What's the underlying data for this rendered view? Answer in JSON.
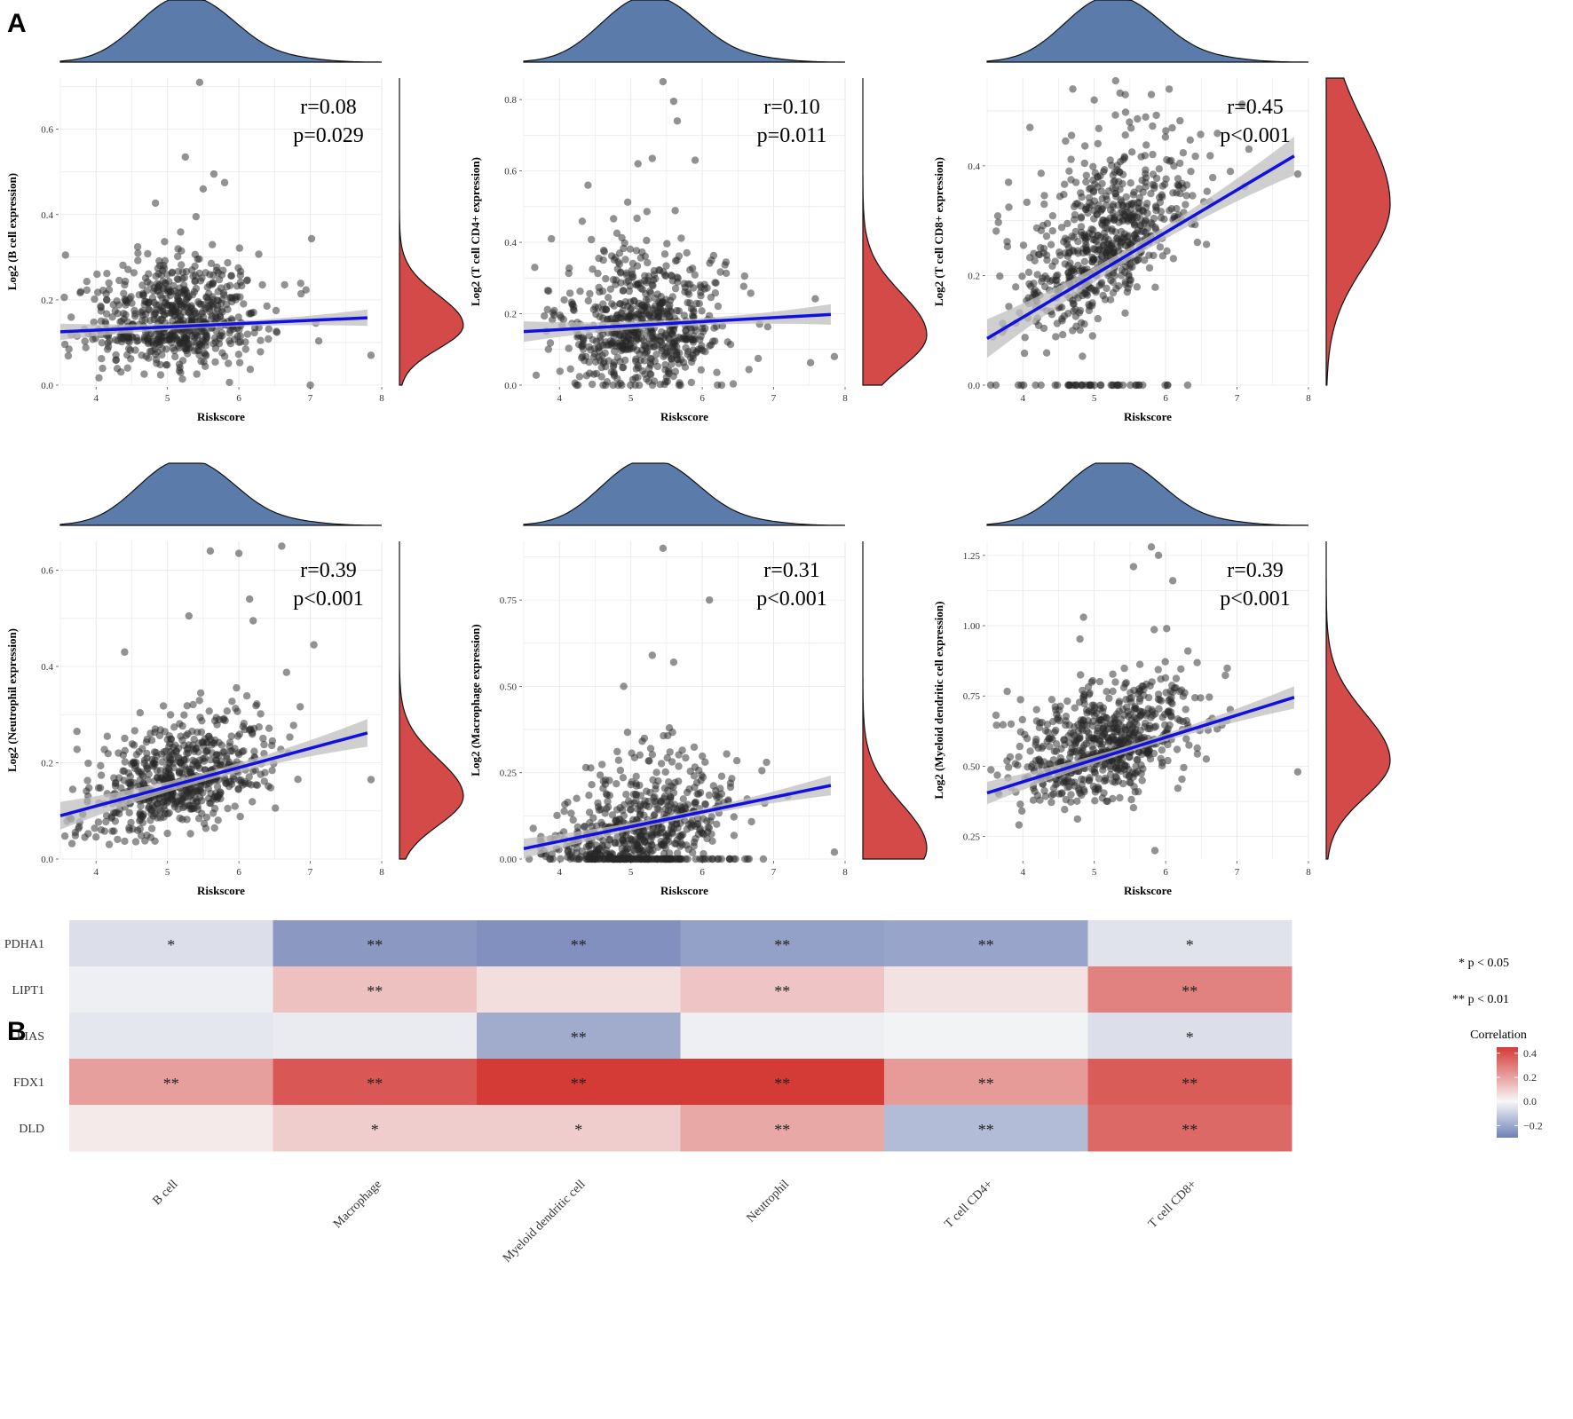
{
  "panel_labels": [
    "A",
    "B"
  ],
  "chart_data": [
    {
      "type": "scatter",
      "panel": "A",
      "xlabel": "Riskscore",
      "ylabel": "Log2 (B cell expression)",
      "r_text": "r=0.08",
      "p_text": "p=0.029",
      "xlim": [
        3.5,
        8
      ],
      "ylim": [
        0,
        0.72
      ],
      "xticks": [
        4,
        5,
        6,
        7,
        8
      ],
      "yticks": [
        0.0,
        0.2,
        0.4,
        0.6
      ],
      "ytick_labels": [
        "0.0",
        "0.2",
        "0.4",
        "0.6"
      ],
      "fit": {
        "x0": 3.5,
        "y0": 0.125,
        "x1": 7.8,
        "y1": 0.158
      },
      "ci_width": 0.012,
      "density_y_peak": 0.14,
      "density_y_sd": 0.055,
      "points": {
        "n": 650,
        "center_y": 0.14,
        "spread_y": 0.075,
        "slope": 0.008,
        "floor": 0.0,
        "zero_frac": 0.0,
        "extra": [
          [
            5.45,
            0.71
          ],
          [
            5.25,
            0.535
          ],
          [
            5.65,
            0.495
          ],
          [
            5.5,
            0.46
          ],
          [
            5.8,
            0.475
          ],
          [
            5.4,
            0.395
          ],
          [
            7.85,
            0.07
          ],
          [
            7.0,
            0.0
          ]
        ]
      }
    },
    {
      "type": "scatter",
      "panel": "A",
      "xlabel": "Riskscore",
      "ylabel": "Log2 (T cell CD4+ expression)",
      "r_text": "r=0.10",
      "p_text": "p=0.011",
      "xlim": [
        3.5,
        8
      ],
      "ylim": [
        0,
        0.86
      ],
      "xticks": [
        4,
        5,
        6,
        7,
        8
      ],
      "yticks": [
        0.0,
        0.2,
        0.4,
        0.6,
        0.8
      ],
      "ytick_labels": [
        "0.0",
        "0.2",
        "0.4",
        "0.6",
        "0.8"
      ],
      "fit": {
        "x0": 3.5,
        "y0": 0.15,
        "x1": 7.8,
        "y1": 0.198
      },
      "ci_width": 0.018,
      "density_y_peak": 0.14,
      "density_y_sd": 0.09,
      "points": {
        "n": 650,
        "center_y": 0.15,
        "spread_y": 0.12,
        "slope": 0.01,
        "floor": 0.0,
        "zero_frac": 0.02,
        "extra": [
          [
            5.45,
            0.85
          ],
          [
            5.6,
            0.795
          ],
          [
            5.65,
            0.74
          ],
          [
            5.3,
            0.635
          ],
          [
            5.1,
            0.62
          ],
          [
            5.9,
            0.63
          ],
          [
            4.4,
            0.56
          ],
          [
            7.85,
            0.08
          ]
        ]
      }
    },
    {
      "type": "scatter",
      "panel": "A",
      "xlabel": "Riskscore",
      "ylabel": "Log2 (T cell CD8+ expression)",
      "r_text": "r=0.45",
      "p_text": "p<0.001",
      "xlim": [
        3.5,
        8
      ],
      "ylim": [
        0,
        0.56
      ],
      "xticks": [
        4,
        5,
        6,
        7,
        8
      ],
      "yticks": [
        0.0,
        0.2,
        0.4
      ],
      "ytick_labels": [
        "0.0",
        "0.2",
        "0.4"
      ],
      "fit": {
        "x0": 3.5,
        "y0": 0.085,
        "x1": 7.8,
        "y1": 0.418
      },
      "ci_width": 0.022,
      "density_y_peak": 0.33,
      "density_y_sd": 0.11,
      "points": {
        "n": 700,
        "center_y": 0.25,
        "spread_y": 0.09,
        "slope": 0.077,
        "floor": 0.0,
        "zero_frac": 0.06,
        "extra": [
          [
            5.3,
            0.555
          ],
          [
            4.7,
            0.54
          ],
          [
            5.0,
            0.52
          ],
          [
            5.8,
            0.53
          ],
          [
            4.1,
            0.47
          ],
          [
            3.55,
            0.0
          ],
          [
            3.8,
            0.37
          ],
          [
            7.85,
            0.385
          ]
        ]
      }
    },
    {
      "type": "scatter",
      "panel": "A",
      "xlabel": "Riskscore",
      "ylabel": "Log2 (Neutrophil expression)",
      "r_text": "r=0.39",
      "p_text": "p<0.001",
      "xlim": [
        3.5,
        8
      ],
      "ylim": [
        0,
        0.66
      ],
      "xticks": [
        4,
        5,
        6,
        7,
        8
      ],
      "yticks": [
        0.0,
        0.2,
        0.4,
        0.6
      ],
      "ytick_labels": [
        "0.0",
        "0.2",
        "0.4",
        "0.6"
      ],
      "fit": {
        "x0": 3.5,
        "y0": 0.09,
        "x1": 7.8,
        "y1": 0.262
      },
      "ci_width": 0.018,
      "density_y_peak": 0.13,
      "density_y_sd": 0.06,
      "points": {
        "n": 650,
        "center_y": 0.155,
        "spread_y": 0.07,
        "slope": 0.04,
        "floor": 0.02,
        "zero_frac": 0.0,
        "extra": [
          [
            6.6,
            0.65
          ],
          [
            5.6,
            0.64
          ],
          [
            6.0,
            0.635
          ],
          [
            6.15,
            0.54
          ],
          [
            5.3,
            0.505
          ],
          [
            6.2,
            0.495
          ],
          [
            7.05,
            0.445
          ],
          [
            4.4,
            0.43
          ],
          [
            7.85,
            0.165
          ]
        ]
      }
    },
    {
      "type": "scatter",
      "panel": "A",
      "xlabel": "Riskscore",
      "ylabel": "Log2 (Macrophage expression)",
      "r_text": "r=0.31",
      "p_text": "p<0.001",
      "xlim": [
        3.5,
        8
      ],
      "ylim": [
        0,
        0.92
      ],
      "xticks": [
        4,
        5,
        6,
        7,
        8
      ],
      "yticks": [
        0.0,
        0.25,
        0.5,
        0.75
      ],
      "ytick_labels": [
        "0.00",
        "0.25",
        "0.50",
        "0.75"
      ],
      "fit": {
        "x0": 3.5,
        "y0": 0.03,
        "x1": 7.8,
        "y1": 0.213
      },
      "ci_width": 0.018,
      "density_y_peak": 0.03,
      "density_y_sd": 0.1,
      "points": {
        "n": 650,
        "center_y": 0.09,
        "spread_y": 0.1,
        "slope": 0.045,
        "floor": 0.0,
        "zero_frac": 0.2,
        "extra": [
          [
            5.45,
            0.9
          ],
          [
            6.1,
            0.75
          ],
          [
            5.3,
            0.59
          ],
          [
            5.6,
            0.57
          ],
          [
            4.9,
            0.5
          ],
          [
            6.9,
            0.28
          ],
          [
            7.85,
            0.02
          ]
        ]
      }
    },
    {
      "type": "scatter",
      "panel": "A",
      "xlabel": "Riskscore",
      "ylabel": "Log2 (Myeloid dendritic cell expression)",
      "r_text": "r=0.39",
      "p_text": "p<0.001",
      "xlim": [
        3.5,
        8
      ],
      "ylim": [
        0.17,
        1.3
      ],
      "xticks": [
        4,
        5,
        6,
        7,
        8
      ],
      "yticks": [
        0.25,
        0.5,
        0.75,
        1.0,
        1.25
      ],
      "ytick_labels": [
        "0.25",
        "0.50",
        "0.75",
        "1.00",
        "1.25"
      ],
      "fit": {
        "x0": 3.5,
        "y0": 0.405,
        "x1": 7.8,
        "y1": 0.745
      },
      "ci_width": 0.025,
      "density_y_peak": 0.52,
      "density_y_sd": 0.13,
      "points": {
        "n": 700,
        "center_y": 0.56,
        "spread_y": 0.13,
        "slope": 0.078,
        "floor": 0.18,
        "zero_frac": 0.0,
        "extra": [
          [
            5.8,
            1.28
          ],
          [
            5.9,
            1.25
          ],
          [
            5.55,
            1.21
          ],
          [
            6.1,
            1.16
          ],
          [
            4.85,
            1.03
          ],
          [
            7.85,
            0.48
          ],
          [
            5.85,
            0.2
          ]
        ]
      }
    },
    {
      "type": "heatmap",
      "panel": "B",
      "rows": [
        "PDHA1",
        "LIPT1",
        "LIAS",
        "FDX1",
        "DLD"
      ],
      "columns": [
        "B cell",
        "Macrophage",
        "Myeloid dendritic cell",
        "Neutrophil",
        "T cell CD4+",
        "T cell CD8+"
      ],
      "values": [
        [
          -0.06,
          -0.24,
          -0.26,
          -0.22,
          -0.21,
          -0.05
        ],
        [
          -0.02,
          0.13,
          0.06,
          0.12,
          0.05,
          0.28
        ],
        [
          -0.04,
          -0.03,
          -0.19,
          -0.02,
          -0.01,
          -0.06
        ],
        [
          0.21,
          0.38,
          0.46,
          0.45,
          0.22,
          0.37
        ],
        [
          0.03,
          0.1,
          0.1,
          0.19,
          -0.15,
          0.34
        ]
      ],
      "significance": [
        [
          "*",
          "**",
          "**",
          "**",
          "**",
          "*"
        ],
        [
          "",
          "**",
          "",
          "**",
          "",
          "**"
        ],
        [
          "",
          "",
          "**",
          "",
          "",
          "*"
        ],
        [
          "**",
          "**",
          "**",
          "**",
          "**",
          "**"
        ],
        [
          "",
          "*",
          "*",
          "**",
          "**",
          "**"
        ]
      ],
      "legend_sig": [
        "* p < 0.05",
        "** p < 0.01"
      ],
      "colorbar_title": "Correlation",
      "colorbar_ticks": [
        0.4,
        0.2,
        0.0,
        -0.2
      ],
      "colorbar_tick_labels": [
        "0.4",
        "0.2",
        "0.0",
        "−0.2"
      ],
      "color_low": "#6f80b5",
      "color_mid": "#f7f7f7",
      "color_high": "#d43b37",
      "value_range": [
        -0.3,
        0.45
      ]
    }
  ],
  "colors": {
    "point": "#262626",
    "fit_line": "#1010e0",
    "ci_band": "#bfbfbf",
    "top_density": "#5b7bab",
    "side_density": "#d44a48",
    "grid": "#e9e9e9"
  }
}
